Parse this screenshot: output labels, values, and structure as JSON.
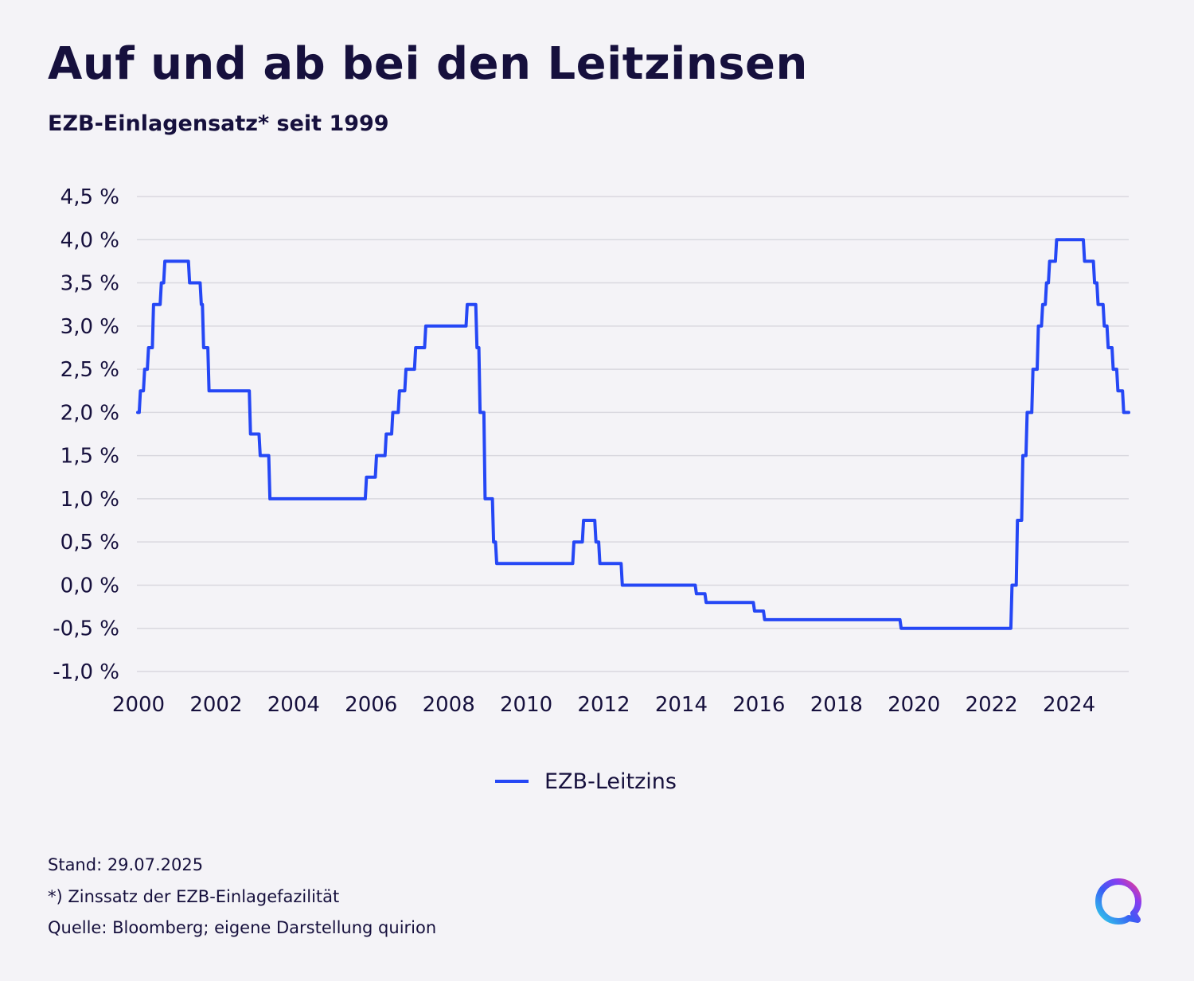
{
  "header": {
    "title": "Auf und ab bei den Leitzinsen",
    "subtitle": "EZB-Einlagensatz* seit 1999"
  },
  "footer": {
    "stand": "Stand: 29.07.2025",
    "note": "*) Zinssatz der EZB-Einlagefazilität",
    "source": "Quelle: Bloomberg; eigene Darstellung quirion"
  },
  "colors": {
    "line": "#2547f5",
    "text": "#16103d",
    "grid": "#d9d8df",
    "background": "#f4f3f7"
  },
  "logo": {
    "icon": "quirion-logo-icon"
  },
  "chart_data": {
    "type": "line",
    "title": "Auf und ab bei den Leitzinsen",
    "subtitle": "EZB-Einlagensatz* seit 1999",
    "xlim": [
      2000,
      2025.58
    ],
    "ylim": [
      -1.0,
      4.5
    ],
    "y_ticks": [
      {
        "value": 4.5,
        "label": "4,5 %"
      },
      {
        "value": 4.0,
        "label": "4,0 %"
      },
      {
        "value": 3.5,
        "label": "3,5 %"
      },
      {
        "value": 3.0,
        "label": "3,0 %"
      },
      {
        "value": 2.5,
        "label": "2,5 %"
      },
      {
        "value": 2.0,
        "label": "2,0 %"
      },
      {
        "value": 1.5,
        "label": "1,5 %"
      },
      {
        "value": 1.0,
        "label": "1,0 %"
      },
      {
        "value": 0.5,
        "label": "0,5 %"
      },
      {
        "value": 0.0,
        "label": "0,0 %"
      },
      {
        "value": -0.5,
        "label": "-0,5 %"
      },
      {
        "value": -1.0,
        "label": "-1,0 %"
      }
    ],
    "x_ticks": [
      {
        "value": 2000,
        "label": "2000"
      },
      {
        "value": 2002,
        "label": "2002"
      },
      {
        "value": 2004,
        "label": "2004"
      },
      {
        "value": 2006,
        "label": "2006"
      },
      {
        "value": 2008,
        "label": "2008"
      },
      {
        "value": 2010,
        "label": "2010"
      },
      {
        "value": 2012,
        "label": "2012"
      },
      {
        "value": 2014,
        "label": "2014"
      },
      {
        "value": 2016,
        "label": "2016"
      },
      {
        "value": 2018,
        "label": "2018"
      },
      {
        "value": 2020,
        "label": "2020"
      },
      {
        "value": 2022,
        "label": "2022"
      },
      {
        "value": 2024,
        "label": "2024"
      }
    ],
    "grid": true,
    "legend_position": "bottom-center",
    "series": [
      {
        "name": "EZB-Leitzins",
        "points": [
          [
            2000.02,
            2.0
          ],
          [
            2000.09,
            2.25
          ],
          [
            2000.2,
            2.5
          ],
          [
            2000.3,
            2.75
          ],
          [
            2000.43,
            3.25
          ],
          [
            2000.63,
            3.5
          ],
          [
            2000.72,
            3.75
          ],
          [
            2001.36,
            3.5
          ],
          [
            2001.66,
            3.25
          ],
          [
            2001.72,
            2.75
          ],
          [
            2001.86,
            2.25
          ],
          [
            2002.93,
            1.75
          ],
          [
            2003.18,
            1.5
          ],
          [
            2003.43,
            1.0
          ],
          [
            2005.92,
            1.25
          ],
          [
            2006.18,
            1.5
          ],
          [
            2006.43,
            1.75
          ],
          [
            2006.6,
            2.0
          ],
          [
            2006.77,
            2.25
          ],
          [
            2006.94,
            2.5
          ],
          [
            2007.19,
            2.75
          ],
          [
            2007.45,
            3.0
          ],
          [
            2008.52,
            3.25
          ],
          [
            2008.77,
            2.75
          ],
          [
            2008.85,
            2.0
          ],
          [
            2008.98,
            1.0
          ],
          [
            2009.2,
            0.5
          ],
          [
            2009.28,
            0.25
          ],
          [
            2011.27,
            0.5
          ],
          [
            2011.52,
            0.75
          ],
          [
            2011.84,
            0.5
          ],
          [
            2011.94,
            0.25
          ],
          [
            2012.52,
            0.0
          ],
          [
            2014.43,
            -0.1
          ],
          [
            2014.68,
            -0.2
          ],
          [
            2015.93,
            -0.3
          ],
          [
            2016.19,
            -0.4
          ],
          [
            2019.71,
            -0.5
          ],
          [
            2022.57,
            0.0
          ],
          [
            2022.71,
            0.75
          ],
          [
            2022.85,
            1.5
          ],
          [
            2022.96,
            2.0
          ],
          [
            2023.11,
            2.5
          ],
          [
            2023.25,
            3.0
          ],
          [
            2023.36,
            3.25
          ],
          [
            2023.46,
            3.5
          ],
          [
            2023.54,
            3.75
          ],
          [
            2023.72,
            4.0
          ],
          [
            2024.44,
            3.75
          ],
          [
            2024.7,
            3.5
          ],
          [
            2024.79,
            3.25
          ],
          [
            2024.95,
            3.0
          ],
          [
            2025.05,
            2.75
          ],
          [
            2025.18,
            2.5
          ],
          [
            2025.3,
            2.25
          ],
          [
            2025.45,
            2.0
          ],
          [
            2025.58,
            2.0
          ]
        ]
      }
    ]
  }
}
